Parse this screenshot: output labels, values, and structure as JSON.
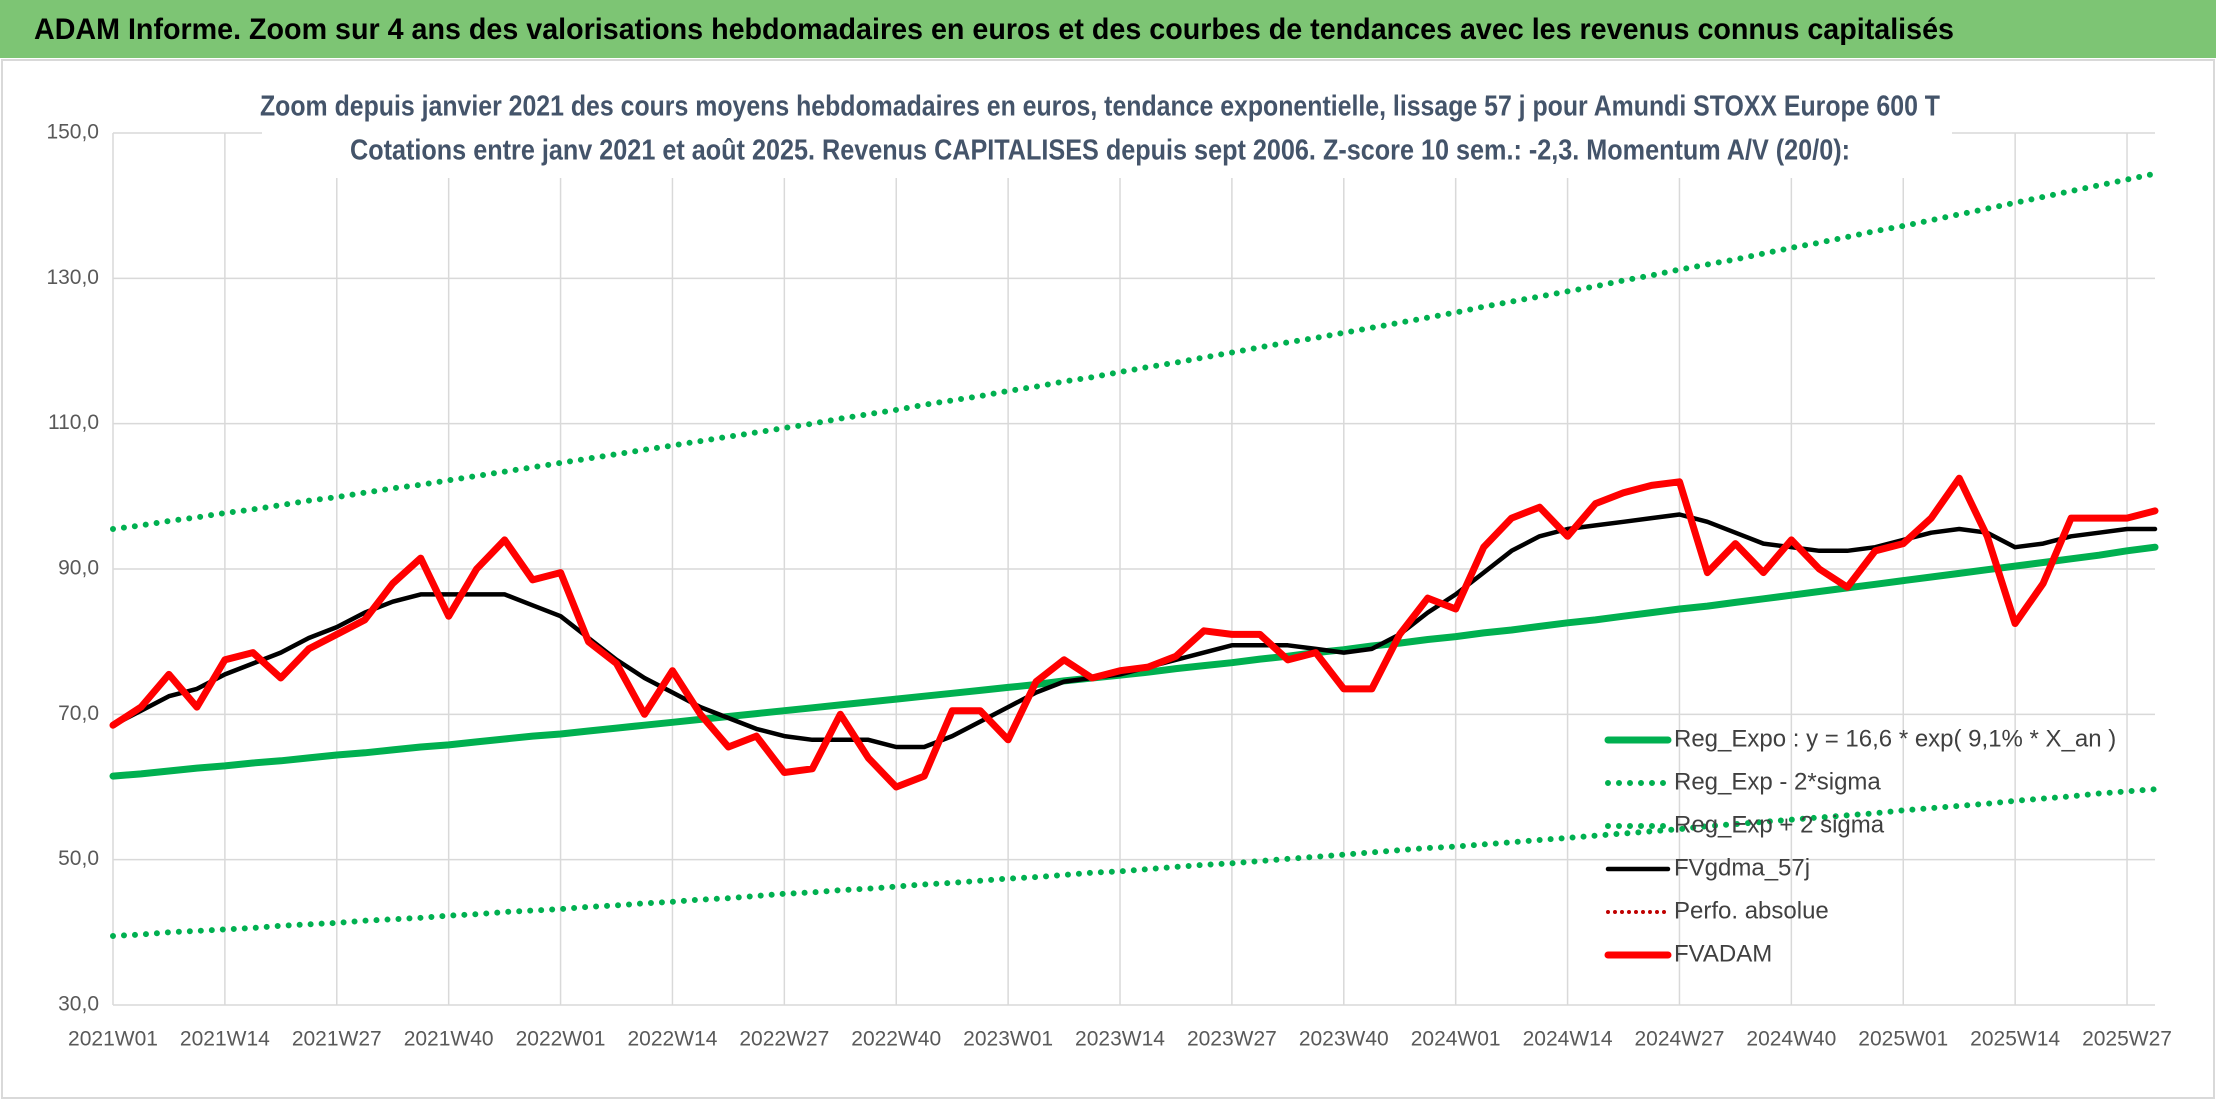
{
  "header": {
    "title": "ADAM Informe. Zoom sur 4 ans des valorisations hebdomadaires en euros et des courbes de tendances avec les revenus connus capitalisés"
  },
  "chart_data": {
    "type": "line",
    "title": "Zoom depuis janvier 2021 des cours moyens hebdomadaires en euros, tendance exponentielle, lissage 57 j pour Amundi STOXX Europe 600 T",
    "subtitle": "Cotations entre janv 2021 et août 2025. Revenus CAPITALISES depuis sept 2006. Z-score 10 sem.: -2,3. Momentum A/V (20/0):",
    "categories": [
      "2021W01",
      null,
      null,
      null,
      "2021W14",
      null,
      null,
      null,
      "2021W27",
      null,
      null,
      null,
      "2021W40",
      null,
      null,
      null,
      "2022W01",
      null,
      null,
      null,
      "2022W14",
      null,
      null,
      null,
      "2022W27",
      null,
      null,
      null,
      "2022W40",
      null,
      null,
      null,
      "2023W01",
      null,
      null,
      null,
      "2023W14",
      null,
      null,
      null,
      "2023W27",
      null,
      null,
      null,
      "2023W40",
      null,
      null,
      null,
      "2024W01",
      null,
      null,
      null,
      "2024W14",
      null,
      null,
      null,
      "2024W27",
      null,
      null,
      null,
      "2024W40",
      null,
      null,
      null,
      "2025W01",
      null,
      null,
      null,
      "2025W14",
      null,
      null,
      null,
      "2025W27",
      null
    ],
    "ylim": [
      30,
      150
    ],
    "yticks": [
      {
        "value": 30,
        "label": "30,0"
      },
      {
        "value": 50,
        "label": "50,0"
      },
      {
        "value": 70,
        "label": "70,0"
      },
      {
        "value": 90,
        "label": "90,0"
      },
      {
        "value": 110,
        "label": "110,0"
      },
      {
        "value": 130,
        "label": "130,0"
      },
      {
        "value": 150,
        "label": "150,0"
      }
    ],
    "grid": true,
    "legend": "bottom-right",
    "series": [
      {
        "name": "Reg_Expo : y = 16,6 * exp( 9,1% *  X_an )",
        "color": "#00b050",
        "style": "solid",
        "values": [
          61.5,
          61.8,
          62.2,
          62.6,
          62.9,
          63.3,
          63.6,
          64.0,
          64.4,
          64.7,
          65.1,
          65.5,
          65.8,
          66.2,
          66.6,
          67.0,
          67.3,
          67.7,
          68.1,
          68.5,
          68.9,
          69.3,
          69.7,
          70.1,
          70.5,
          70.9,
          71.3,
          71.7,
          72.1,
          72.5,
          72.9,
          73.3,
          73.7,
          74.1,
          74.6,
          75.0,
          75.4,
          75.8,
          76.3,
          76.7,
          77.1,
          77.6,
          78.0,
          78.5,
          78.9,
          79.4,
          79.8,
          80.3,
          80.7,
          81.2,
          81.6,
          82.1,
          82.6,
          83.0,
          83.5,
          84.0,
          84.5,
          84.9,
          85.4,
          85.9,
          86.4,
          86.9,
          87.4,
          87.9,
          88.4,
          88.9,
          89.4,
          89.9,
          90.4,
          90.9,
          91.4,
          91.9,
          92.5,
          93.0
        ]
      },
      {
        "name": "Reg_Exp - 2*sigma",
        "color": "#00b050",
        "style": "dotted",
        "values": [
          39.5,
          39.7,
          40.0,
          40.2,
          40.4,
          40.6,
          40.9,
          41.1,
          41.3,
          41.6,
          41.8,
          42.0,
          42.3,
          42.5,
          42.8,
          43.0,
          43.2,
          43.5,
          43.7,
          44.0,
          44.2,
          44.5,
          44.7,
          45.0,
          45.3,
          45.5,
          45.8,
          46.0,
          46.3,
          46.6,
          46.8,
          47.1,
          47.4,
          47.6,
          47.9,
          48.2,
          48.4,
          48.7,
          49.0,
          49.3,
          49.5,
          49.8,
          50.1,
          50.4,
          50.7,
          51.0,
          51.3,
          51.6,
          51.8,
          52.1,
          52.4,
          52.7,
          53.0,
          53.3,
          53.6,
          53.9,
          54.2,
          54.6,
          54.9,
          55.2,
          55.5,
          55.8,
          56.1,
          56.4,
          56.8,
          57.1,
          57.4,
          57.7,
          58.1,
          58.4,
          58.7,
          59.1,
          59.4,
          59.7
        ]
      },
      {
        "name": "Reg_Exp + 2 sigma",
        "color": "#00b050",
        "style": "dotted",
        "values": [
          95.5,
          96.0,
          96.6,
          97.1,
          97.7,
          98.2,
          98.8,
          99.4,
          99.9,
          100.5,
          101.1,
          101.6,
          102.2,
          102.8,
          103.4,
          104.0,
          104.6,
          105.2,
          105.8,
          106.4,
          107.0,
          107.6,
          108.2,
          108.8,
          109.4,
          110.0,
          110.7,
          111.3,
          111.9,
          112.6,
          113.2,
          113.8,
          114.5,
          115.1,
          115.8,
          116.4,
          117.1,
          117.8,
          118.4,
          119.1,
          119.8,
          120.5,
          121.2,
          121.8,
          122.5,
          123.2,
          123.9,
          124.6,
          125.3,
          126.1,
          126.8,
          127.5,
          128.2,
          128.9,
          129.7,
          130.4,
          131.2,
          131.9,
          132.6,
          133.4,
          134.2,
          134.9,
          135.7,
          136.5,
          137.2,
          138.0,
          138.8,
          139.6,
          140.4,
          141.2,
          142.0,
          142.8,
          143.6,
          144.4
        ]
      },
      {
        "name": "FVgdma_57j",
        "color": "#000000",
        "style": "solid",
        "values": [
          68.5,
          70.5,
          72.5,
          73.5,
          75.5,
          77,
          78.5,
          80.5,
          82,
          84,
          85.5,
          86.5,
          86.5,
          86.5,
          86.5,
          85,
          83.5,
          80.5,
          77.5,
          75,
          73,
          71,
          69.5,
          68,
          67,
          66.5,
          66.5,
          66.5,
          65.5,
          65.5,
          67,
          69,
          71,
          73,
          74.5,
          75,
          75.5,
          76.5,
          77.5,
          78.5,
          79.5,
          79.5,
          79.5,
          79,
          78.5,
          79,
          81,
          84,
          86.5,
          89.5,
          92.5,
          94.5,
          95.5,
          96,
          96.5,
          97,
          97.5,
          96.5,
          95,
          93.5,
          93,
          92.5,
          92.5,
          93,
          94,
          95,
          95.5,
          95,
          93,
          93.5,
          94.5,
          95,
          95.5,
          95.5
        ]
      },
      {
        "name": "Perfo. absolue",
        "color": "#c00000",
        "style": "dotted",
        "values": [
          null,
          null,
          null,
          null,
          null,
          null,
          null,
          null,
          null,
          null,
          null,
          null,
          null,
          null,
          null,
          null,
          null,
          null,
          null,
          null,
          null,
          null,
          null,
          null,
          null,
          null,
          null,
          null,
          null,
          null,
          null,
          null,
          null,
          null,
          null,
          null,
          null,
          null,
          null,
          null,
          null,
          null,
          null,
          null,
          null,
          null,
          null,
          null,
          null,
          null,
          null,
          null,
          null,
          null,
          null,
          null,
          null,
          null,
          null,
          null,
          null,
          null,
          null,
          null,
          null,
          null,
          null,
          null,
          null,
          null,
          null,
          null,
          null,
          null
        ]
      },
      {
        "name": "FVADAM",
        "color": "#ff0000",
        "style": "solid",
        "values": [
          68.5,
          71,
          75.5,
          71,
          77.5,
          78.5,
          75,
          79,
          81,
          83,
          88,
          91.5,
          83.5,
          90,
          94,
          88.5,
          89.5,
          80,
          77,
          70,
          76,
          70,
          65.5,
          67,
          62,
          62.5,
          70,
          64,
          60,
          61.5,
          70.5,
          70.5,
          66.5,
          74.5,
          77.5,
          75,
          76,
          76.5,
          78,
          81.5,
          81,
          81,
          77.5,
          78.5,
          73.5,
          73.5,
          81,
          86,
          84.5,
          93,
          97,
          98.5,
          94.5,
          99,
          100.5,
          101.5,
          102,
          89.5,
          93.5,
          89.5,
          94,
          90,
          87.5,
          92.5,
          93.5,
          97,
          102.5,
          94.5,
          82.5,
          88,
          97,
          97,
          97,
          98
        ]
      }
    ]
  }
}
